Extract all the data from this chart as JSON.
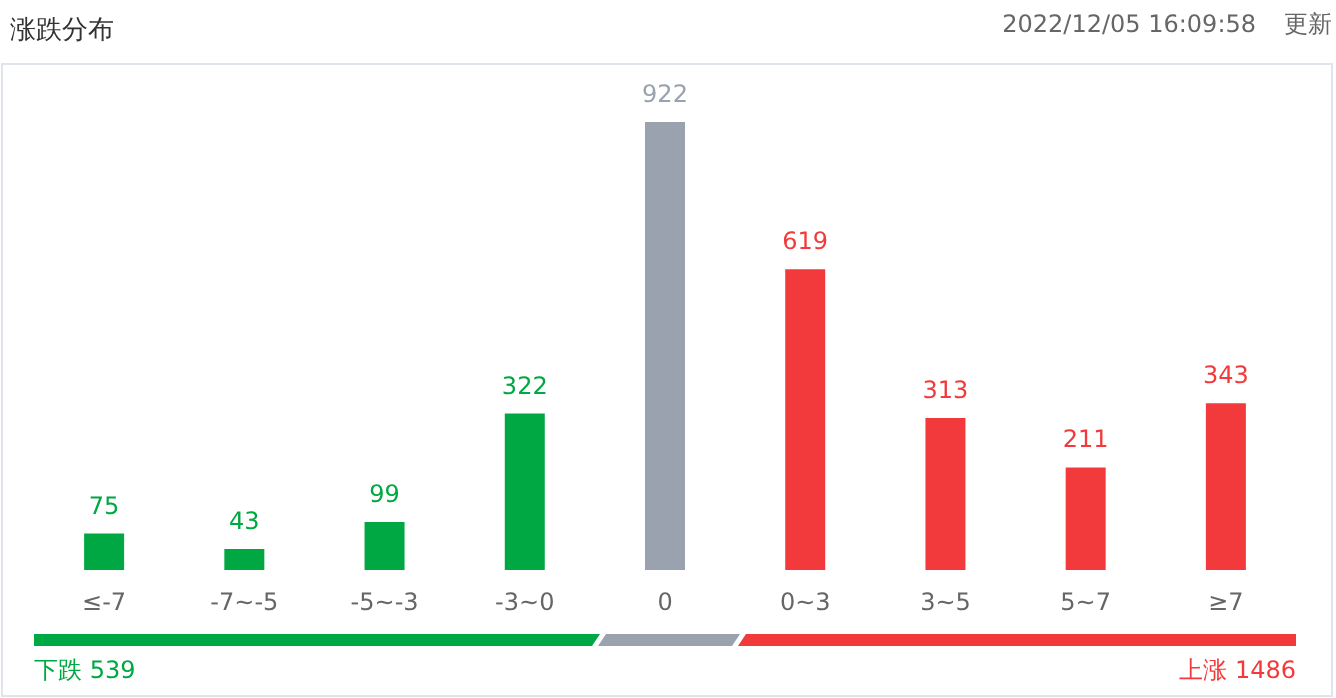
{
  "chart_data": {
    "type": "bar",
    "title": "涨跌分布",
    "categories": [
      "≤-7",
      "-7~-5",
      "-5~-3",
      "-3~0",
      "0",
      "0~3",
      "3~5",
      "5~7",
      "≥7"
    ],
    "values": [
      75,
      43,
      99,
      322,
      922,
      619,
      313,
      211,
      343
    ],
    "colors": [
      "#00a843",
      "#00a843",
      "#00a843",
      "#00a843",
      "#99a2ae",
      "#f23a3c",
      "#f23a3c",
      "#f23a3c",
      "#f23a3c"
    ],
    "data_labels": true,
    "annotations": [
      "2022/12/05 16:09:58",
      "更新",
      "下跌 539",
      "上涨 1486"
    ]
  }
}
